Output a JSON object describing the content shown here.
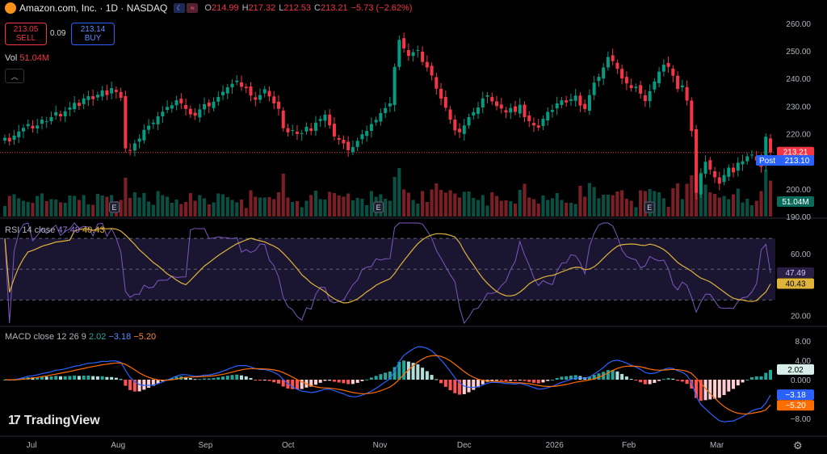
{
  "header": {
    "title": "Amazon.com, Inc. · 1D · NASDAQ",
    "O": "214.99",
    "H": "217.32",
    "L": "212.53",
    "C": "213.21",
    "change": "−5.73 (−2.62%)",
    "o_label": "O",
    "h_label": "H",
    "l_label": "L",
    "c_label": "C"
  },
  "trade": {
    "sell_price": "213.05",
    "sell_label": "SELL",
    "spread": "0.09",
    "buy_price": "213.14",
    "buy_label": "BUY"
  },
  "volume_legend": {
    "label": "Vol",
    "value": "51.04M"
  },
  "rsi_legend": {
    "label": "RSI 14 close",
    "rsi": "47.49",
    "ma": "40.43"
  },
  "macd_legend": {
    "label": "MACD close 12 26 9",
    "hist": "2.02",
    "macd": "−3.18",
    "signal": "−5.20"
  },
  "price_axis": [
    "260.00",
    "250.00",
    "240.00",
    "230.00",
    "220.00",
    "210.00",
    "200.00",
    "190.00"
  ],
  "rsi_axis": [
    "60.00",
    "20.00"
  ],
  "macd_axis": [
    "8.00",
    "4.00",
    "0.000",
    "−4.00",
    "−8.00"
  ],
  "price_badges": {
    "last": "213.21",
    "post_label": "Post",
    "post": "213.10",
    "vol": "51.04M"
  },
  "rsi_badges": {
    "rsi": "47.49",
    "ma": "40.43"
  },
  "macd_badges": {
    "hist": "2.02",
    "macd": "−3.18",
    "signal": "−5.20"
  },
  "x_axis": [
    "Jul",
    "Aug",
    "Sep",
    "Oct",
    "Nov",
    "Dec",
    "2026",
    "Feb",
    "Mar"
  ],
  "earnings_marker": "E",
  "brand": "TradingView",
  "colors": {
    "up": "#089981",
    "down": "#f23645",
    "rsi": "#7e57c2",
    "rsi_ma": "#e0b33a",
    "macd": "#2962ff",
    "signal": "#ff6d00",
    "post": "#2962ff"
  },
  "chart_data": [
    {
      "type": "candlestick",
      "title": "Amazon.com, Inc. · 1D · NASDAQ",
      "x_ticks": [
        "Jul",
        "Aug",
        "Sep",
        "Oct",
        "Nov",
        "Dec",
        "2026",
        "Feb",
        "Mar"
      ],
      "ylim": [
        190,
        262
      ],
      "y_ticks": [
        190,
        200,
        210,
        220,
        230,
        240,
        250,
        260
      ],
      "last_close": 213.21,
      "post_market": 213.1,
      "ohlc_last": {
        "open": 214.99,
        "high": 217.32,
        "low": 212.53,
        "close": 213.21
      },
      "close_series": [
        218.5,
        217.2,
        219.3,
        220.8,
        222.1,
        223.5,
        221.9,
        223.0,
        225.1,
        224.5,
        226.0,
        227.8,
        226.3,
        228.1,
        229.5,
        231.2,
        230.1,
        232.8,
        233.6,
        232.5,
        234.1,
        235.7,
        234.0,
        236.5,
        235.1,
        233.0,
        214.7,
        213.9,
        216.5,
        218.2,
        221.4,
        222.9,
        224.0,
        226.3,
        228.0,
        229.7,
        230.3,
        232.1,
        231.0,
        229.0,
        227.0,
        226.5,
        228.8,
        230.7,
        229.9,
        231.6,
        233.3,
        235.2,
        236.8,
        238.1,
        239.2,
        237.0,
        236.5,
        233.8,
        232.3,
        234.0,
        236.1,
        233.5,
        231.0,
        229.0,
        222.0,
        220.5,
        221.3,
        219.9,
        220.2,
        222.5,
        221.0,
        224.0,
        225.3,
        226.9,
        223.0,
        219.0,
        217.8,
        216.5,
        214.0,
        215.2,
        217.4,
        219.8,
        221.0,
        223.5,
        225.0,
        227.5,
        229.3,
        231.0,
        244.2,
        254.0,
        250.9,
        248.2,
        249.5,
        250.3,
        246.0,
        244.0,
        241.1,
        236.3,
        232.7,
        229.4,
        225.1,
        221.2,
        220.5,
        223.0,
        226.0,
        227.8,
        229.5,
        232.8,
        233.9,
        231.7,
        230.0,
        229.1,
        227.7,
        229.3,
        227.9,
        230.5,
        226.0,
        224.5,
        223.0,
        222.2,
        225.4,
        227.9,
        228.6,
        231.0,
        232.1,
        231.3,
        232.5,
        233.8,
        230.2,
        228.9,
        234.0,
        238.5,
        240.6,
        244.0,
        247.8,
        246.3,
        243.5,
        240.0,
        238.2,
        236.5,
        237.0,
        234.5,
        231.8,
        235.4,
        238.9,
        242.5,
        245.0,
        244.2,
        241.0,
        236.2,
        237.5,
        232.0,
        221.0,
        198.6,
        205.5,
        209.8,
        207.0,
        204.2,
        201.9,
        205.0,
        207.7,
        206.0,
        209.5,
        210.0,
        211.8,
        212.4,
        210.3,
        208.0,
        218.9,
        213.21
      ],
      "volume_M_last": 51.04
    },
    {
      "type": "line",
      "title": "RSI 14 close",
      "series": [
        {
          "name": "RSI",
          "last": 47.49
        },
        {
          "name": "RSI MA",
          "last": 40.43
        }
      ],
      "y_ticks": [
        20,
        60
      ],
      "bands": [
        30,
        50,
        70
      ],
      "ylim": [
        15,
        80
      ]
    },
    {
      "type": "bar",
      "title": "MACD close 12 26 9",
      "series": [
        {
          "name": "Histogram",
          "last": 2.02
        },
        {
          "name": "MACD",
          "last": -3.18
        },
        {
          "name": "Signal",
          "last": -5.2
        }
      ],
      "y_ticks": [
        8,
        4,
        0,
        -4,
        -8
      ],
      "ylim": [
        -10,
        10
      ]
    }
  ]
}
